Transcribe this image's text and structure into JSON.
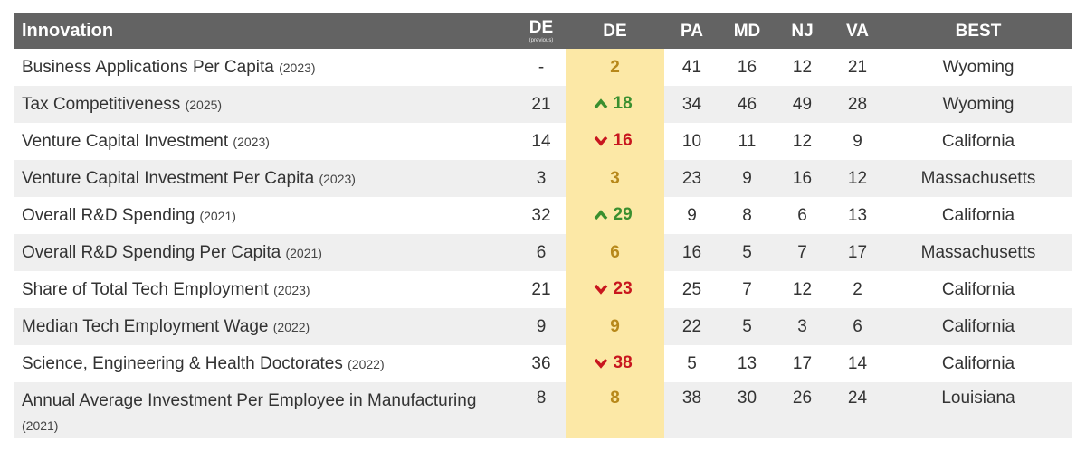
{
  "header": {
    "title": "Innovation",
    "prev_label": "DE",
    "prev_sub": "(previous)",
    "de_label": "DE",
    "states": [
      "PA",
      "MD",
      "NJ",
      "VA"
    ],
    "best_label": "BEST"
  },
  "colors": {
    "header_bg": "#636363",
    "highlight": "#fce8a6",
    "up": "#3a8f2f",
    "down": "#c8161e",
    "neutral": "#b7881a"
  },
  "rows": [
    {
      "name": "Business Applications Per Capita",
      "year": "(2023)",
      "prev": "-",
      "de": "2",
      "trend": "none",
      "pa": "41",
      "md": "16",
      "nj": "12",
      "va": "21",
      "best": "Wyoming"
    },
    {
      "name": "Tax Competitiveness",
      "year": "(2025)",
      "prev": "21",
      "de": "18",
      "trend": "up",
      "pa": "34",
      "md": "46",
      "nj": "49",
      "va": "28",
      "best": "Wyoming"
    },
    {
      "name": "Venture Capital Investment",
      "year": "(2023)",
      "prev": "14",
      "de": "16",
      "trend": "down",
      "pa": "10",
      "md": "11",
      "nj": "12",
      "va": "9",
      "best": "California"
    },
    {
      "name": "Venture Capital Investment Per Capita",
      "year": "(2023)",
      "prev": "3",
      "de": "3",
      "trend": "none",
      "pa": "23",
      "md": "9",
      "nj": "16",
      "va": "12",
      "best": "Massachusetts"
    },
    {
      "name": "Overall R&D Spending",
      "year": "(2021)",
      "prev": "32",
      "de": "29",
      "trend": "up",
      "pa": "9",
      "md": "8",
      "nj": "6",
      "va": "13",
      "best": "California"
    },
    {
      "name": "Overall R&D Spending Per Capita",
      "year": "(2021)",
      "prev": "6",
      "de": "6",
      "trend": "none",
      "pa": "16",
      "md": "5",
      "nj": "7",
      "va": "17",
      "best": "Massachusetts"
    },
    {
      "name": "Share of Total Tech Employment",
      "year": "(2023)",
      "prev": "21",
      "de": "23",
      "trend": "down",
      "pa": "25",
      "md": "7",
      "nj": "12",
      "va": "2",
      "best": "California"
    },
    {
      "name": "Median Tech Employment Wage",
      "year": "(2022)",
      "prev": "9",
      "de": "9",
      "trend": "none",
      "pa": "22",
      "md": "5",
      "nj": "3",
      "va": "6",
      "best": "California"
    },
    {
      "name": "Science, Engineering & Health Doctorates",
      "year": "(2022)",
      "prev": "36",
      "de": "38",
      "trend": "down",
      "pa": "5",
      "md": "13",
      "nj": "17",
      "va": "14",
      "best": "California"
    },
    {
      "name": "Annual Average Investment Per Employee in Manufacturing",
      "year": "(2021)",
      "prev": "8",
      "de": "8",
      "trend": "none",
      "pa": "38",
      "md": "30",
      "nj": "26",
      "va": "24",
      "best": "Louisiana"
    }
  ]
}
